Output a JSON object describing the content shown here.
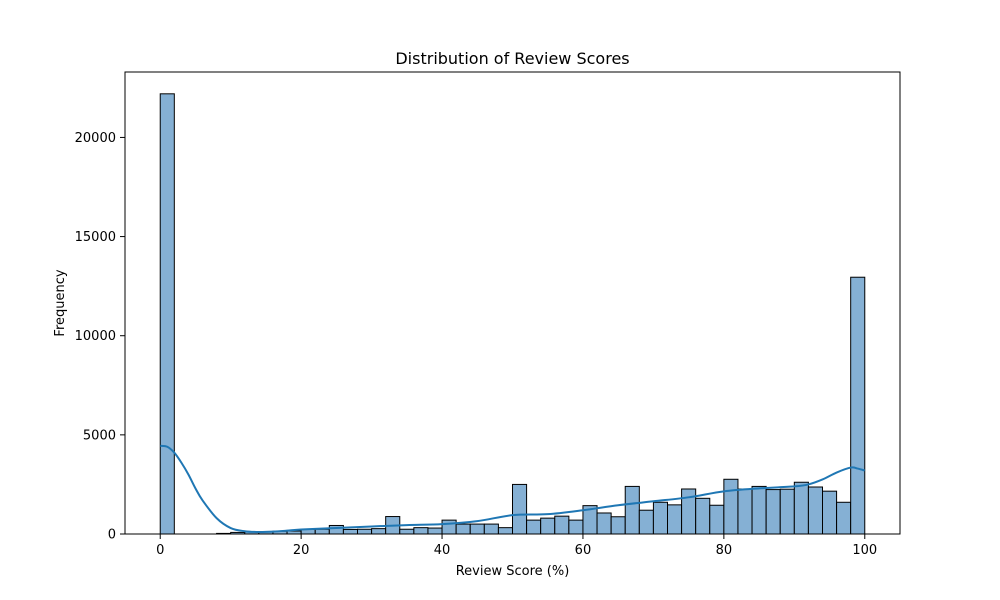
{
  "chart_data": {
    "type": "bar",
    "title": "Distribution of Review Scores",
    "xlabel": "Review Score (%)",
    "ylabel": "Frequency",
    "xlim": [
      -5,
      105
    ],
    "ylim": [
      0,
      23300
    ],
    "xticks": [
      0,
      20,
      40,
      60,
      80,
      100
    ],
    "yticks": [
      0,
      5000,
      10000,
      15000,
      20000
    ],
    "bin_width": 2,
    "bins_start": [
      0,
      2,
      4,
      6,
      8,
      10,
      12,
      14,
      16,
      18,
      20,
      22,
      24,
      26,
      28,
      30,
      32,
      34,
      36,
      38,
      40,
      42,
      44,
      46,
      48,
      50,
      52,
      54,
      56,
      58,
      60,
      62,
      64,
      66,
      68,
      70,
      72,
      74,
      76,
      78,
      80,
      82,
      84,
      86,
      88,
      90,
      92,
      94,
      96,
      98
    ],
    "values": [
      22200,
      0,
      0,
      0,
      30,
      80,
      100,
      110,
      140,
      150,
      230,
      240,
      430,
      230,
      240,
      270,
      880,
      240,
      320,
      300,
      700,
      500,
      500,
      500,
      320,
      2500,
      700,
      800,
      900,
      700,
      1430,
      1060,
      870,
      2400,
      1200,
      1600,
      1470,
      2270,
      1800,
      1450,
      2760,
      2270,
      2400,
      2240,
      2260,
      2610,
      2370,
      2160,
      1600,
      12950
    ],
    "kde": {
      "x": [
        0,
        1,
        2,
        3,
        4,
        5,
        6,
        8,
        10,
        12,
        14,
        16,
        18,
        20,
        25,
        30,
        35,
        40,
        45,
        50,
        55,
        60,
        65,
        70,
        75,
        80,
        85,
        90,
        92,
        94,
        96,
        98,
        99,
        100
      ],
      "y": [
        4450,
        4400,
        4100,
        3600,
        3000,
        2300,
        1700,
        800,
        300,
        140,
        100,
        120,
        170,
        230,
        300,
        380,
        450,
        500,
        650,
        950,
        1000,
        1200,
        1450,
        1650,
        1850,
        2150,
        2300,
        2400,
        2500,
        2750,
        3100,
        3350,
        3300,
        3200
      ]
    },
    "colors": {
      "bar_fill": "#85b0d4",
      "bar_edge": "#000000",
      "kde_line": "#1f77b4",
      "axes": "#000000",
      "background": "#ffffff"
    },
    "grid": false
  }
}
